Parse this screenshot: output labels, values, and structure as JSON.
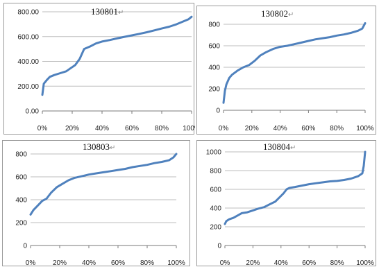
{
  "title_mark": "↵",
  "line_color": "#4f81bd",
  "chart_data": [
    {
      "type": "line",
      "title": "130801",
      "xlabel": "",
      "ylabel": "",
      "xlim": [
        0,
        100
      ],
      "ylim": [
        0,
        800
      ],
      "y_ticks": [
        0,
        200,
        400,
        600,
        800
      ],
      "y_tick_labels": [
        "0.00",
        "200.00",
        "400.00",
        "600.00",
        "800.00"
      ],
      "x_ticks": [
        0,
        20,
        40,
        60,
        80,
        100
      ],
      "x_tick_labels": [
        "0%",
        "20%",
        "40%",
        "60%",
        "80%",
        "100%"
      ],
      "grid": true,
      "legend": "none",
      "series": [
        {
          "x": [
            0,
            1,
            3,
            5,
            8,
            12,
            16,
            19,
            22,
            25,
            28,
            32,
            36,
            40,
            45,
            50,
            55,
            60,
            65,
            70,
            75,
            80,
            85,
            90,
            95,
            98,
            100
          ],
          "y": [
            130,
            220,
            250,
            275,
            290,
            305,
            320,
            345,
            370,
            420,
            500,
            520,
            545,
            560,
            572,
            585,
            598,
            610,
            622,
            635,
            650,
            665,
            680,
            700,
            725,
            740,
            760
          ]
        }
      ]
    },
    {
      "type": "line",
      "title": "130802",
      "xlabel": "",
      "ylabel": "",
      "xlim": [
        0,
        100
      ],
      "ylim": [
        0,
        800
      ],
      "y_ticks": [
        0,
        200,
        400,
        600,
        800
      ],
      "y_tick_labels": [
        "0",
        "200",
        "400",
        "600",
        "800"
      ],
      "x_ticks": [
        0,
        20,
        40,
        60,
        80,
        100
      ],
      "x_tick_labels": [
        "0%",
        "20%",
        "40%",
        "60%",
        "80%",
        "100%"
      ],
      "grid": true,
      "legend": "none",
      "series": [
        {
          "x": [
            0,
            1,
            2,
            4,
            6,
            10,
            14,
            18,
            22,
            26,
            30,
            35,
            40,
            45,
            50,
            55,
            60,
            65,
            70,
            75,
            80,
            85,
            90,
            95,
            98,
            100
          ],
          "y": [
            70,
            180,
            240,
            300,
            330,
            370,
            400,
            420,
            460,
            510,
            540,
            570,
            590,
            600,
            615,
            630,
            645,
            660,
            670,
            680,
            695,
            705,
            720,
            740,
            760,
            810
          ]
        }
      ]
    },
    {
      "type": "line",
      "title": "130803",
      "xlabel": "",
      "ylabel": "",
      "xlim": [
        0,
        100
      ],
      "ylim": [
        0,
        800
      ],
      "y_ticks": [
        0,
        200,
        400,
        600,
        800
      ],
      "y_tick_labels": [
        "0",
        "200",
        "400",
        "600",
        "800"
      ],
      "x_ticks": [
        0,
        20,
        40,
        60,
        80,
        100
      ],
      "x_tick_labels": [
        "0%",
        "20%",
        "40%",
        "60%",
        "80%",
        "100%"
      ],
      "grid": true,
      "legend": "none",
      "series": [
        {
          "x": [
            0,
            2,
            5,
            8,
            11,
            14,
            18,
            22,
            26,
            30,
            35,
            40,
            45,
            50,
            55,
            60,
            65,
            70,
            75,
            80,
            85,
            90,
            95,
            98,
            100
          ],
          "y": [
            270,
            310,
            350,
            390,
            410,
            460,
            510,
            540,
            570,
            590,
            605,
            620,
            630,
            640,
            650,
            660,
            670,
            685,
            695,
            705,
            720,
            730,
            745,
            770,
            800
          ]
        }
      ]
    },
    {
      "type": "line",
      "title": "130804",
      "xlabel": "",
      "ylabel": "",
      "xlim": [
        0,
        100
      ],
      "ylim": [
        0,
        1000
      ],
      "y_ticks": [
        0,
        200,
        400,
        600,
        800,
        1000
      ],
      "y_tick_labels": [
        "0",
        "200",
        "400",
        "600",
        "800",
        "1000"
      ],
      "x_ticks": [
        0,
        20,
        40,
        60,
        80,
        100
      ],
      "x_tick_labels": [
        "0%",
        "20%",
        "40%",
        "60%",
        "80%",
        "100%"
      ],
      "grid": true,
      "legend": "none",
      "series": [
        {
          "x": [
            0,
            1,
            3,
            6,
            9,
            12,
            16,
            20,
            24,
            28,
            32,
            36,
            40,
            42,
            44,
            46,
            50,
            55,
            60,
            65,
            70,
            75,
            80,
            85,
            90,
            95,
            98,
            99,
            100
          ],
          "y": [
            230,
            260,
            280,
            295,
            320,
            345,
            355,
            375,
            395,
            410,
            440,
            470,
            530,
            560,
            600,
            615,
            625,
            640,
            655,
            665,
            675,
            685,
            690,
            700,
            715,
            740,
            770,
            850,
            1000
          ]
        }
      ]
    }
  ]
}
